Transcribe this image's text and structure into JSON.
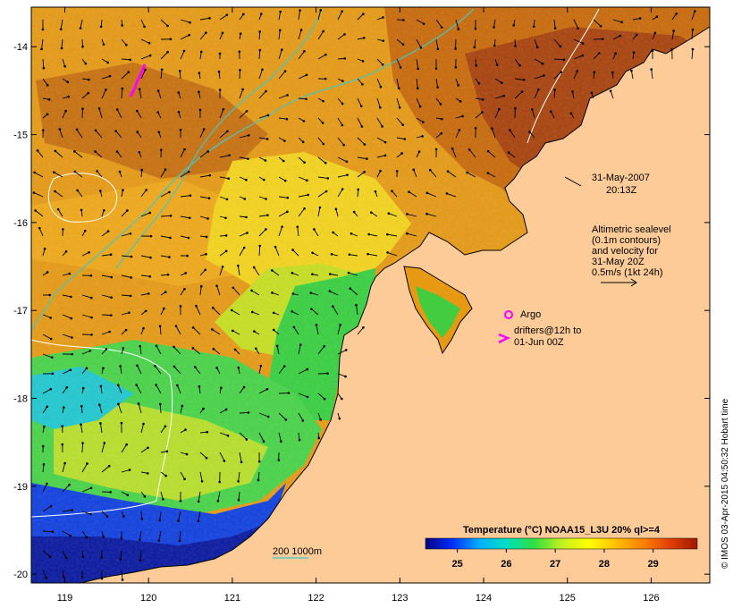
{
  "map": {
    "lon_ticks": [
      "119",
      "120",
      "121",
      "122",
      "123",
      "124",
      "125",
      "126"
    ],
    "lat_ticks": [
      "-14",
      "-15",
      "-16",
      "-17",
      "-18",
      "-19",
      "-20"
    ],
    "lon_range": [
      118.6,
      126.7
    ],
    "lat_range": [
      -20.1,
      -13.55
    ],
    "colors": {
      "land": "#fdcb97",
      "contour_white": "#ffffff",
      "bathymetry_cyan": "#40c8c8",
      "drifter_magenta": "#ff00ff",
      "coast": "#000000"
    }
  },
  "annotations": {
    "date": "31-May-2007",
    "time": "20:13Z",
    "legend_lines": [
      "Altimetric sealevel",
      "(0.1m contours)",
      "and velocity for",
      "31-May 20Z",
      "0.5m/s (1kt 24h)"
    ],
    "argo_label": "Argo",
    "drifters_line1": "drifters@12h to",
    "drifters_line2": "01-Jun 00Z",
    "bathy_label": "200  1000m"
  },
  "colorbar": {
    "title": "Temperature (°C) NOAA15_L3U 20% ql>=4",
    "ticks": [
      "25",
      "26",
      "27",
      "28",
      "29"
    ],
    "stops": [
      "#000080",
      "#0030ff",
      "#00b0ff",
      "#00e0c0",
      "#30e040",
      "#c0f020",
      "#ffff00",
      "#ffc000",
      "#ff8000",
      "#e04000",
      "#a01800"
    ]
  },
  "credit": "© IMOS 03-Apr-2015 04:50:32 Hobart time"
}
